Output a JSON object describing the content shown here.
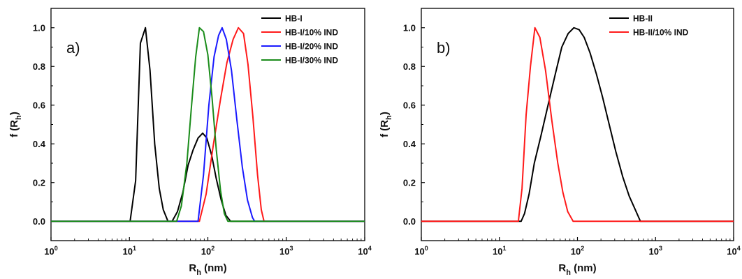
{
  "chart_data": [
    {
      "type": "line",
      "panel_label": "a)",
      "xlabel_main": "R",
      "xlabel_sub": "h",
      "xlabel_unit": " (nm)",
      "ylabel_main": "f (R",
      "ylabel_sub": "h",
      "ylabel_end": ")",
      "x_scale": "log",
      "xlim": [
        1,
        10000
      ],
      "ylim": [
        -0.1,
        1.1
      ],
      "x_ticks": [
        1,
        10,
        100,
        1000,
        10000
      ],
      "x_tick_labels": [
        {
          "base": "10",
          "exp": "0"
        },
        {
          "base": "10",
          "exp": "1"
        },
        {
          "base": "10",
          "exp": "2"
        },
        {
          "base": "10",
          "exp": "3"
        },
        {
          "base": "10",
          "exp": "4"
        }
      ],
      "y_ticks": [
        0.0,
        0.2,
        0.4,
        0.6,
        0.8,
        1.0
      ],
      "y_tick_labels": [
        "0.0",
        "0.2",
        "0.4",
        "0.6",
        "0.8",
        "1.0"
      ],
      "legend_position": "top-right",
      "series": [
        {
          "name": "HB-I",
          "color": "#000000",
          "points": [
            [
              1,
              0
            ],
            [
              10.2,
              0
            ],
            [
              12,
              0.21
            ],
            [
              13.8,
              0.92
            ],
            [
              16,
              1.0
            ],
            [
              18.3,
              0.78
            ],
            [
              21,
              0.4
            ],
            [
              24,
              0.17
            ],
            [
              27,
              0.06
            ],
            [
              31,
              0
            ],
            [
              35,
              0
            ],
            [
              41,
              0.05
            ],
            [
              48,
              0.15
            ],
            [
              56,
              0.29
            ],
            [
              65,
              0.37
            ],
            [
              75,
              0.43
            ],
            [
              86,
              0.455
            ],
            [
              97,
              0.43
            ],
            [
              112,
              0.34
            ],
            [
              128,
              0.22
            ],
            [
              148,
              0.11
            ],
            [
              170,
              0.03
            ],
            [
              195,
              0
            ],
            [
              10000,
              0
            ]
          ]
        },
        {
          "name": "HB-I/10% IND",
          "color": "#ff1a1a",
          "points": [
            [
              1,
              0
            ],
            [
              78,
              0
            ],
            [
              95,
              0.14
            ],
            [
              118,
              0.4
            ],
            [
              145,
              0.63
            ],
            [
              175,
              0.82
            ],
            [
              210,
              0.94
            ],
            [
              245,
              1.0
            ],
            [
              285,
              0.97
            ],
            [
              325,
              0.81
            ],
            [
              375,
              0.54
            ],
            [
              430,
              0.24
            ],
            [
              480,
              0.06
            ],
            [
              520,
              0
            ],
            [
              10000,
              0
            ]
          ]
        },
        {
          "name": "HB-I/20% IND",
          "color": "#1a1aff",
          "points": [
            [
              1,
              0
            ],
            [
              75,
              0
            ],
            [
              88,
              0.24
            ],
            [
              103,
              0.6
            ],
            [
              120,
              0.85
            ],
            [
              137,
              0.96
            ],
            [
              152,
              1.0
            ],
            [
              172,
              0.94
            ],
            [
              200,
              0.78
            ],
            [
              235,
              0.52
            ],
            [
              275,
              0.28
            ],
            [
              320,
              0.11
            ],
            [
              370,
              0.02
            ],
            [
              395,
              0
            ],
            [
              10000,
              0
            ]
          ]
        },
        {
          "name": "HB-I/30% IND",
          "color": "#1a8c1a",
          "points": [
            [
              1,
              0
            ],
            [
              40,
              0
            ],
            [
              46,
              0.08
            ],
            [
              54,
              0.3
            ],
            [
              62,
              0.6
            ],
            [
              70,
              0.85
            ],
            [
              78,
              1.0
            ],
            [
              88,
              0.98
            ],
            [
              100,
              0.86
            ],
            [
              113,
              0.64
            ],
            [
              128,
              0.37
            ],
            [
              145,
              0.16
            ],
            [
              162,
              0.04
            ],
            [
              180,
              0
            ],
            [
              10000,
              0
            ]
          ]
        }
      ]
    },
    {
      "type": "line",
      "panel_label": "b)",
      "xlabel_main": "R",
      "xlabel_sub": "h",
      "xlabel_unit": " (nm)",
      "ylabel_main": "f (R",
      "ylabel_sub": "h",
      "ylabel_end": ")",
      "x_scale": "log",
      "xlim": [
        1,
        10000
      ],
      "ylim": [
        -0.1,
        1.1
      ],
      "x_ticks": [
        1,
        10,
        100,
        1000,
        10000
      ],
      "x_tick_labels": [
        {
          "base": "10",
          "exp": "0"
        },
        {
          "base": "10",
          "exp": "1"
        },
        {
          "base": "10",
          "exp": "2"
        },
        {
          "base": "10",
          "exp": "3"
        },
        {
          "base": "10",
          "exp": "4"
        }
      ],
      "y_ticks": [
        0.0,
        0.2,
        0.4,
        0.6,
        0.8,
        1.0
      ],
      "y_tick_labels": [
        "0.0",
        "0.2",
        "0.4",
        "0.6",
        "0.8",
        "1.0"
      ],
      "legend_position": "top-right",
      "series": [
        {
          "name": "HB-II",
          "color": "#000000",
          "points": [
            [
              1,
              0
            ],
            [
              19,
              0
            ],
            [
              21,
              0.04
            ],
            [
              24,
              0.14
            ],
            [
              28,
              0.3
            ],
            [
              34,
              0.44
            ],
            [
              42,
              0.6
            ],
            [
              52,
              0.76
            ],
            [
              63,
              0.9
            ],
            [
              76,
              0.97
            ],
            [
              90,
              1.0
            ],
            [
              105,
              0.99
            ],
            [
              122,
              0.95
            ],
            [
              145,
              0.87
            ],
            [
              175,
              0.76
            ],
            [
              210,
              0.64
            ],
            [
              255,
              0.5
            ],
            [
              310,
              0.36
            ],
            [
              380,
              0.23
            ],
            [
              460,
              0.13
            ],
            [
              550,
              0.06
            ],
            [
              640,
              0
            ],
            [
              10000,
              0
            ]
          ]
        },
        {
          "name": "HB-II/10% IND",
          "color": "#ff1a1a",
          "points": [
            [
              1,
              0
            ],
            [
              17.5,
              0
            ],
            [
              19.5,
              0.17
            ],
            [
              22,
              0.55
            ],
            [
              25,
              0.8
            ],
            [
              28.5,
              1.0
            ],
            [
              33,
              0.95
            ],
            [
              39,
              0.78
            ],
            [
              47,
              0.52
            ],
            [
              56,
              0.3
            ],
            [
              65,
              0.15
            ],
            [
              75,
              0.05
            ],
            [
              88,
              0
            ],
            [
              10000,
              0
            ]
          ]
        }
      ]
    }
  ]
}
